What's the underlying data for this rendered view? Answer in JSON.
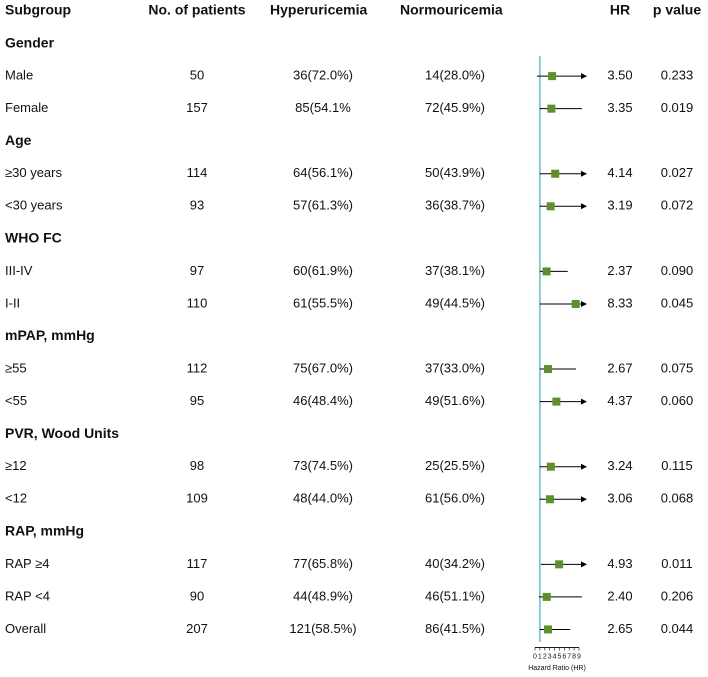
{
  "chart_data": {
    "type": "forest",
    "columns": {
      "subgroup": "Subgroup",
      "patients": "No. of patients",
      "hyper": "Hyperuricemia",
      "normo": "Normouricemia",
      "hr": "HR",
      "p": "p value"
    },
    "groups": [
      {
        "name": "Gender",
        "rows": [
          {
            "label": "Male",
            "n": 50,
            "hyper": "36(72.0%)",
            "normo": "14(28.0%)",
            "hr": 3.5,
            "hr_label": "3.50",
            "ci": [
              0.4,
              null
            ],
            "p": "0.233"
          },
          {
            "label": "Female",
            "n": 157,
            "hyper": "85(54.1%",
            "normo": "72(45.9%)",
            "hr": 3.35,
            "hr_label": "3.35",
            "ci": [
              1.0,
              9.6
            ],
            "p": "0.019"
          }
        ]
      },
      {
        "name": "Age",
        "rows": [
          {
            "label": "≥30 years",
            "n": 114,
            "hyper": "64(56.1%)",
            "normo": "50(43.9%)",
            "hr": 4.14,
            "hr_label": "4.14",
            "ci": [
              1.0,
              null
            ],
            "p": "0.027"
          },
          {
            "label": "<30 years",
            "n": 93,
            "hyper": "57(61.3%)",
            "normo": "36(38.7%)",
            "hr": 3.19,
            "hr_label": "3.19",
            "ci": [
              1.0,
              null
            ],
            "p": "0.072"
          }
        ]
      },
      {
        "name": "WHO FC",
        "rows": [
          {
            "label": "III-IV",
            "n": 97,
            "hyper": "60(61.9%)",
            "normo": "37(38.1%)",
            "hr": 2.37,
            "hr_label": "2.37",
            "ci": [
              1.0,
              6.7
            ],
            "p": "0.090"
          },
          {
            "label": "I-II",
            "n": 110,
            "hyper": "61(55.5%)",
            "normo": "49(44.5%)",
            "hr": 8.33,
            "hr_label": "8.33",
            "ci": [
              1.0,
              null
            ],
            "p": "0.045"
          }
        ]
      },
      {
        "name": "mPAP, mmHg",
        "rows": [
          {
            "label": "≥55",
            "n": 112,
            "hyper": "75(67.0%)",
            "normo": "37(33.0%)",
            "hr": 2.67,
            "hr_label": "2.67",
            "ci": [
              1.0,
              8.4
            ],
            "p": "0.075"
          },
          {
            "label": "<55",
            "n": 95,
            "hyper": "46(48.4%)",
            "normo": "49(51.6%)",
            "hr": 4.37,
            "hr_label": "4.37",
            "ci": [
              1.0,
              null
            ],
            "p": "0.060"
          }
        ]
      },
      {
        "name": "PVR, Wood Units",
        "rows": [
          {
            "label": "≥12",
            "n": 98,
            "hyper": "73(74.5%)",
            "normo": "25(25.5%)",
            "hr": 3.24,
            "hr_label": "3.24",
            "ci": [
              1.0,
              null
            ],
            "p": "0.115"
          },
          {
            "label": "<12",
            "n": 109,
            "hyper": "48(44.0%)",
            "normo": "61(56.0%)",
            "hr": 3.06,
            "hr_label": "3.06",
            "ci": [
              1.0,
              null
            ],
            "p": "0.068"
          }
        ]
      },
      {
        "name": "RAP, mmHg",
        "rows": [
          {
            "label": "RAP ≥4",
            "n": 117,
            "hyper": "77(65.8%)",
            "normo": "40(34.2%)",
            "hr": 4.93,
            "hr_label": "4.93",
            "ci": [
              1.2,
              null
            ],
            "p": "0.011"
          },
          {
            "label": "RAP <4",
            "n": 90,
            "hyper": "44(48.9%)",
            "normo": "46(51.1%)",
            "hr": 2.4,
            "hr_label": "2.40",
            "ci": [
              0.8,
              9.6
            ],
            "p": "0.206"
          }
        ]
      }
    ],
    "overall": {
      "label": "Overall",
      "n": 207,
      "hyper": "121(58.5%)",
      "normo": "86(41.5%)",
      "hr": 2.65,
      "hr_label": "2.65",
      "ci": [
        1.0,
        7.2
      ],
      "p": "0.044"
    },
    "xlim": [
      0,
      11.25
    ],
    "xticks": [
      0,
      1,
      2,
      3,
      4,
      5,
      6,
      7,
      8,
      9
    ],
    "xlabel": "Hazard Ratio (HR)",
    "reference_line": 1,
    "marker_color": "#5e8f2c",
    "ci_color": "#000000",
    "reference_color": "#6cb8c9"
  }
}
